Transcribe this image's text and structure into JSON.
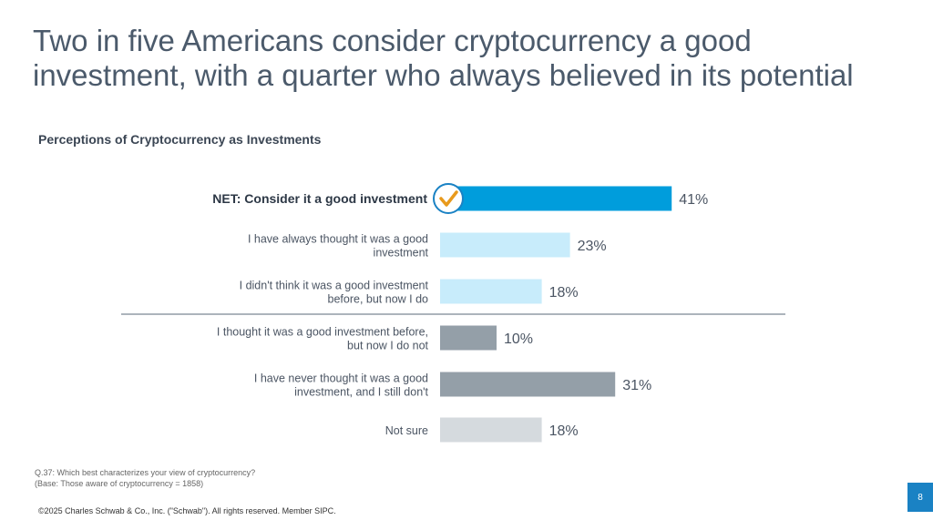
{
  "title": "Two in five Americans consider cryptocurrency a good investment, with a quarter who always believed in its potential",
  "chart_data": {
    "type": "bar",
    "orientation": "horizontal",
    "title": "Perceptions of Cryptocurrency as Investments",
    "categories": [
      [
        "NET: Consider it a good investment"
      ],
      [
        "I have always thought it was a good",
        "investment"
      ],
      [
        "I didn't think it was a good investment",
        "before, but now I do"
      ],
      [
        "I thought it was a good investment before,",
        "but now I do not"
      ],
      [
        "I have never thought it was a good",
        "investment, and I still don't"
      ],
      [
        "Not sure"
      ]
    ],
    "values": [
      41,
      23,
      18,
      10,
      31,
      18
    ],
    "value_labels": [
      "41%",
      "23%",
      "18%",
      "10%",
      "31%",
      "18%"
    ],
    "colors": [
      "#009ddc",
      "#c8ecfb",
      "#c8ecfb",
      "#949fa8",
      "#949fa8",
      "#d5dade"
    ],
    "highlight": "check-icon on NET bar",
    "divider_after_index": 2,
    "xlim": [
      0,
      100
    ]
  },
  "footnote": {
    "question": "Q.37:  Which best characterizes your view of cryptocurrency?",
    "base": "(Base: Those aware of cryptocurrency = 1858)"
  },
  "copyright": "©2025 Charles Schwab & Co., Inc. (\"Schwab\"). All rights reserved. Member SIPC.",
  "page_number": "8"
}
